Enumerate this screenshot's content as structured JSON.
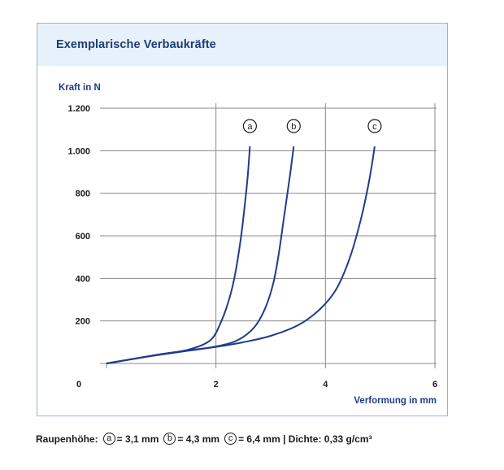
{
  "panel": {
    "title": "Exemplarische Verbaukräfte"
  },
  "chart_data": {
    "type": "line",
    "ylabel": "Kraft in N",
    "xlabel": "Verformung in mm",
    "xlim": [
      0,
      6
    ],
    "ylim": [
      0,
      1200
    ],
    "x_ticks": [
      "0",
      "2",
      "4",
      "6"
    ],
    "y_ticks": [
      "200",
      "400",
      "600",
      "800",
      "1.000",
      "1.200"
    ],
    "grid": true,
    "series": [
      {
        "name": "a",
        "color": "#1f3b8a",
        "x": [
          0,
          0.5,
          1.0,
          1.5,
          1.9,
          2.1,
          2.25,
          2.35,
          2.45,
          2.52,
          2.58,
          2.62
        ],
        "y": [
          0,
          22,
          44,
          65,
          110,
          200,
          310,
          420,
          580,
          730,
          880,
          1020
        ]
      },
      {
        "name": "b",
        "color": "#1f3b8a",
        "x": [
          0,
          0.5,
          1.0,
          1.5,
          2.0,
          2.4,
          2.7,
          2.9,
          3.05,
          3.15,
          3.25,
          3.35,
          3.42
        ],
        "y": [
          0,
          22,
          44,
          62,
          80,
          110,
          170,
          260,
          380,
          520,
          700,
          880,
          1020
        ]
      },
      {
        "name": "c",
        "color": "#1f3b8a",
        "x": [
          0,
          0.5,
          1.0,
          1.5,
          2.0,
          2.5,
          3.0,
          3.5,
          3.9,
          4.2,
          4.45,
          4.65,
          4.8,
          4.9
        ],
        "y": [
          0,
          22,
          42,
          60,
          78,
          100,
          130,
          180,
          255,
          350,
          500,
          680,
          860,
          1020
        ]
      }
    ],
    "annotations": [
      "a",
      "b",
      "c"
    ]
  },
  "footer": {
    "prefix": "Raupenhöhe:",
    "a_symbol": "a",
    "a_text": "= 3,1 mm",
    "b_symbol": "b",
    "b_text": "= 4,3 mm",
    "c_symbol": "c",
    "c_text": "= 6,4 mm | Dichte: 0,33 g/cm³"
  }
}
